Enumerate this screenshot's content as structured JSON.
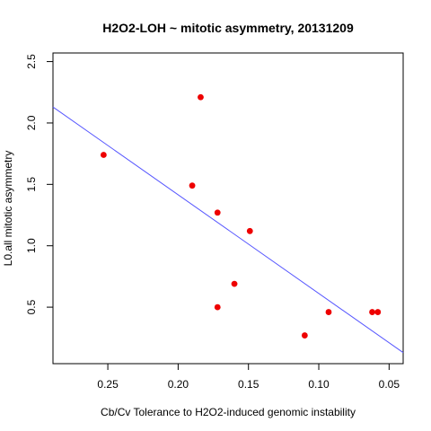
{
  "chart_data": {
    "type": "scatter",
    "title": "H2O2-LOH ~ mitotic asymmetry, 20131209",
    "xlabel": "Cb/Cv Tolerance to H2O2-induced genomic instability",
    "ylabel": "L0.all mitotic asymmetry",
    "x_reversed": true,
    "xlim": [
      0.289,
      0.04
    ],
    "ylim": [
      0.04,
      2.57
    ],
    "x_ticks": [
      0.25,
      0.2,
      0.15,
      0.1,
      0.05
    ],
    "x_tick_labels": [
      "0.25",
      "0.20",
      "0.15",
      "0.10",
      "0.05"
    ],
    "y_ticks": [
      0.5,
      1.0,
      1.5,
      2.0,
      2.5
    ],
    "y_tick_labels": [
      "0.5",
      "1.0",
      "1.5",
      "2.0",
      "2.5"
    ],
    "grid": false,
    "points": {
      "color": "#ee0000",
      "x": [
        0.253,
        0.184,
        0.19,
        0.172,
        0.149,
        0.16,
        0.172,
        0.11,
        0.093,
        0.062,
        0.058
      ],
      "y": [
        1.74,
        2.21,
        1.49,
        1.27,
        1.12,
        0.69,
        0.5,
        0.27,
        0.46,
        0.46,
        0.46
      ]
    },
    "fit_line": {
      "color": "#5555ff",
      "x": [
        0.289,
        0.04
      ],
      "y": [
        2.13,
        0.13
      ]
    }
  }
}
